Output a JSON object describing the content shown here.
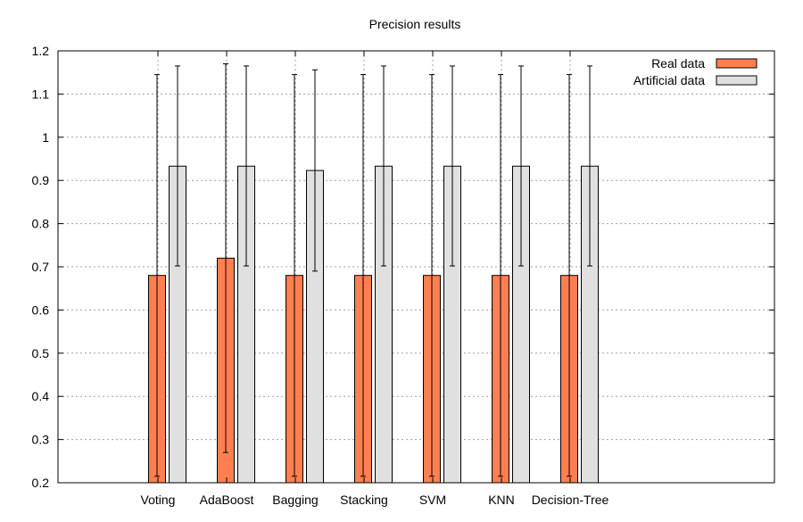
{
  "chart_data": {
    "type": "bar",
    "title": "Precision results",
    "xlabel": "",
    "ylabel": "",
    "ylim": [
      0.2,
      1.2
    ],
    "yticks": [
      "0.2",
      "0.3",
      "0.4",
      "0.5",
      "0.6",
      "0.7",
      "0.8",
      "0.9",
      "1",
      "1.1",
      "1.2"
    ],
    "grid": true,
    "legend_position": "top-right",
    "categories": [
      "Voting",
      "AdaBoost",
      "Bagging",
      "Stacking",
      "SVM",
      "KNN",
      "Decision-Tree"
    ],
    "series": [
      {
        "name": "Real data",
        "color": "#ff7f50",
        "values": [
          0.68,
          0.72,
          0.68,
          0.68,
          0.68,
          0.68,
          0.68
        ],
        "error_low": [
          0.215,
          0.27,
          0.215,
          0.215,
          0.215,
          0.215,
          0.215
        ],
        "error_high": [
          1.145,
          1.17,
          1.145,
          1.145,
          1.145,
          1.145,
          1.145
        ]
      },
      {
        "name": "Artificial data",
        "color": "#e0e0e0",
        "values": [
          0.933,
          0.933,
          0.923,
          0.933,
          0.933,
          0.933,
          0.933
        ],
        "error_low": [
          0.702,
          0.702,
          0.69,
          0.702,
          0.702,
          0.702,
          0.702
        ],
        "error_high": [
          1.165,
          1.165,
          1.156,
          1.165,
          1.165,
          1.165,
          1.165
        ]
      }
    ]
  }
}
